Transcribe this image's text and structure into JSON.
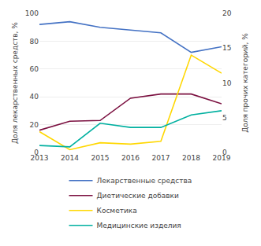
{
  "chart_data": {
    "type": "line",
    "x": [
      2013,
      2014,
      2015,
      2016,
      2017,
      2018,
      2019
    ],
    "xlim": [
      2013,
      2019
    ],
    "xticks": [
      2013,
      2014,
      2015,
      2016,
      2017,
      2018,
      2019
    ],
    "ylabel": "Доля лекарственных средств, %",
    "y2label": "Доля прочих категорий, %",
    "ylim": [
      0,
      100
    ],
    "yticks": [
      0,
      20,
      40,
      60,
      80,
      100
    ],
    "y2lim": [
      0,
      20
    ],
    "y2ticks": [
      0,
      5,
      10,
      15,
      20
    ],
    "grid": true,
    "legend": "bottom",
    "series": [
      {
        "name": "Лекарственные средства",
        "color": "#4472C4",
        "values": [
          92,
          94,
          90,
          88,
          86,
          72,
          76
        ]
      },
      {
        "name": "Диетические добавки",
        "color": "#7B1040",
        "values": [
          3.2,
          4.5,
          4.6,
          7.8,
          8.4,
          8.4,
          7.0
        ],
        "axis": "y2"
      },
      {
        "name": "Косметика",
        "color": "#FFD700",
        "values": [
          3.0,
          0.4,
          1.4,
          1.2,
          1.6,
          14.0,
          11.4
        ],
        "axis": "y2"
      },
      {
        "name": "Медицинские изделия",
        "color": "#00B0A0",
        "values": [
          1.0,
          0.8,
          4.2,
          3.6,
          3.6,
          5.4,
          6.0
        ],
        "axis": "y2"
      }
    ]
  }
}
